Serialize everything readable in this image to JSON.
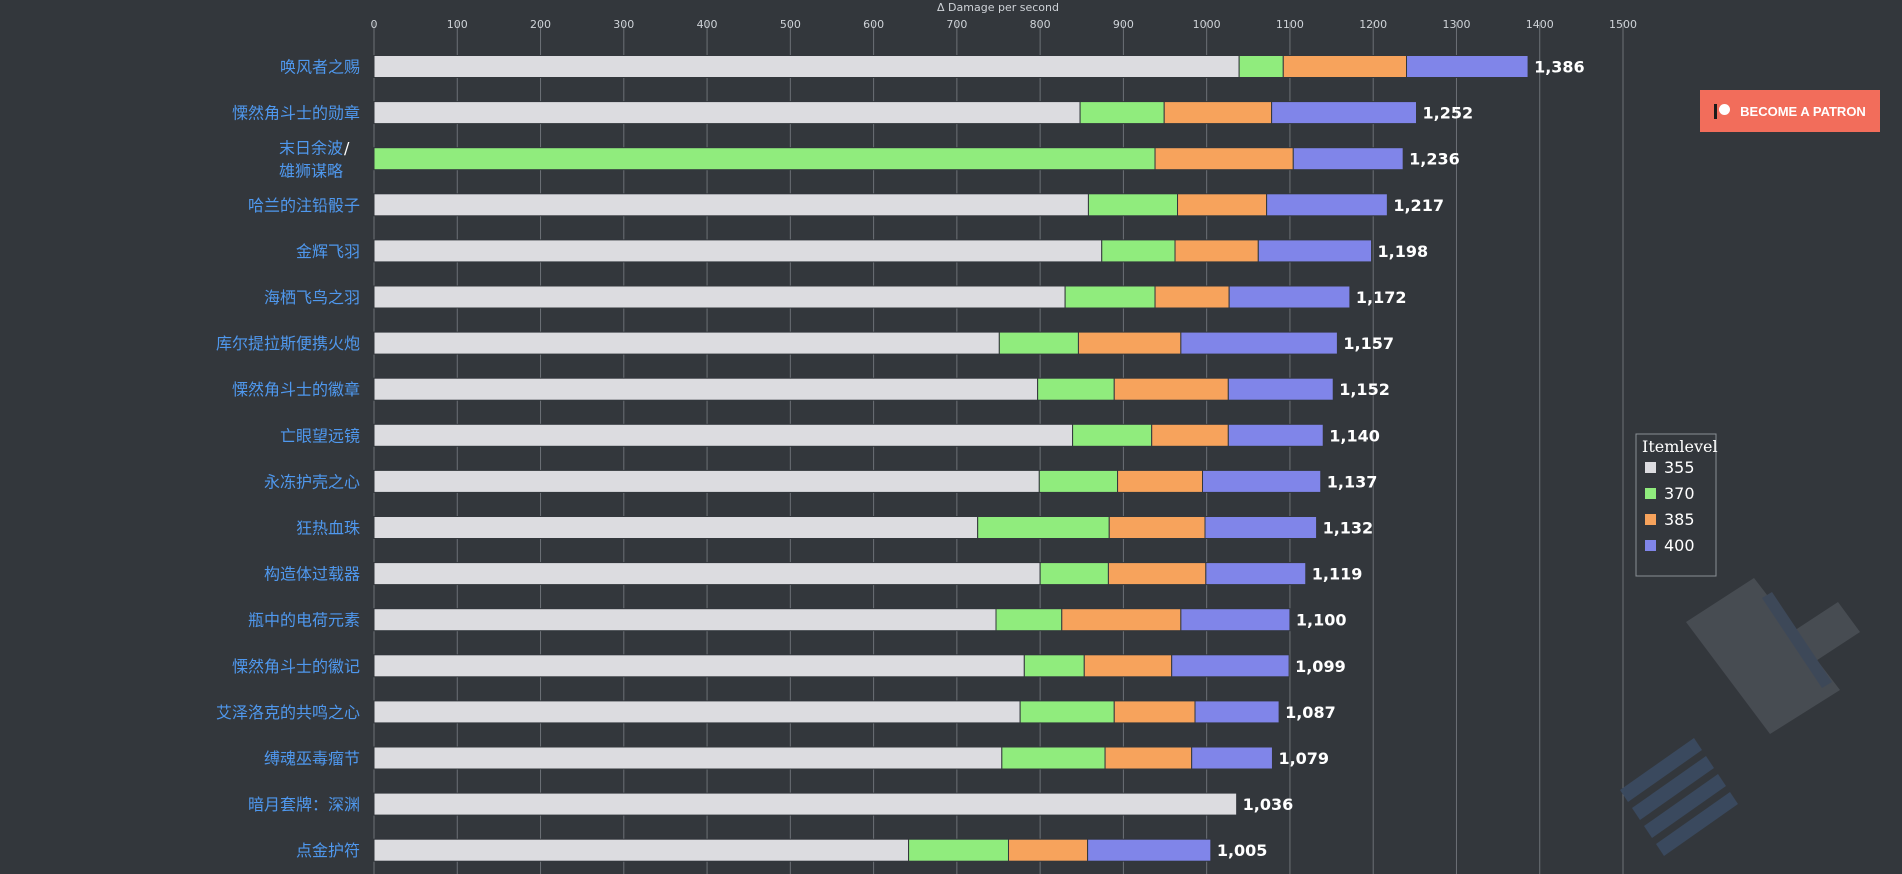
{
  "chart_data": {
    "type": "bar",
    "orientation": "horizontal",
    "stacked": true,
    "xlabel": "Δ Damage per second",
    "xlim": [
      0,
      1500
    ],
    "xticks": [
      0,
      100,
      200,
      300,
      400,
      500,
      600,
      700,
      800,
      900,
      1000,
      1100,
      1200,
      1300,
      1400,
      1500
    ],
    "grid": true,
    "legend_title": "Itemlevel",
    "legend_position": "right",
    "categories": [
      "唤风者之赐",
      "慄然角斗士的勋章",
      "末日余波 / 雄狮谋略",
      "哈兰的注铅骰子",
      "金辉飞羽",
      "海栖飞鸟之羽",
      "库尔提拉斯便携火炮",
      "慄然角斗士的徽章",
      "亡眼望远镜",
      "永冻护壳之心",
      "狂热血珠",
      "构造体过载器",
      "瓶中的电荷元素",
      "慄然角斗士的徽记",
      "艾泽洛克的共鸣之心",
      "缚魂巫毒瘤节",
      "暗月套牌：深渊",
      "点金护符"
    ],
    "category_lines": [
      [
        "唤风者之赐"
      ],
      [
        "慄然角斗士的勋章"
      ],
      [
        "末日余波",
        " /",
        "雄狮谋略"
      ],
      [
        "哈兰的注铅骰子"
      ],
      [
        "金辉飞羽"
      ],
      [
        "海栖飞鸟之羽"
      ],
      [
        "库尔提拉斯便携火炮"
      ],
      [
        "慄然角斗士的徽章"
      ],
      [
        "亡眼望远镜"
      ],
      [
        "永冻护壳之心"
      ],
      [
        "狂热血珠"
      ],
      [
        "构造体过载器"
      ],
      [
        "瓶中的电荷元素"
      ],
      [
        "慄然角斗士的徽记"
      ],
      [
        "艾泽洛克的共鸣之心"
      ],
      [
        "缚魂巫毒瘤节"
      ],
      [
        "暗月套牌：深渊"
      ],
      [
        "点金护符"
      ]
    ],
    "series": [
      {
        "name": "355",
        "color": "#dcdce0",
        "values": [
          1039,
          848,
          0,
          858,
          874,
          830,
          751,
          797,
          839,
          799,
          725,
          800,
          747,
          781,
          776,
          754,
          1036,
          642
        ]
      },
      {
        "name": "370",
        "color": "#90ec7d",
        "values": [
          53,
          101,
          938,
          107,
          88,
          108,
          95,
          92,
          95,
          94,
          158,
          82,
          79,
          72,
          113,
          124,
          0,
          120
        ]
      },
      {
        "name": "385",
        "color": "#f7a35c",
        "values": [
          148,
          129,
          166,
          107,
          100,
          89,
          123,
          137,
          92,
          102,
          115,
          117,
          143,
          105,
          97,
          104,
          0,
          95
        ]
      },
      {
        "name": "400",
        "color": "#8085e9",
        "values": [
          146,
          174,
          132,
          145,
          136,
          145,
          188,
          126,
          114,
          142,
          134,
          120,
          131,
          141,
          101,
          97,
          0,
          148
        ]
      }
    ],
    "totals": [
      "1,386",
      "1,252",
      "1,236",
      "1,217",
      "1,198",
      "1,172",
      "1,157",
      "1,152",
      "1,140",
      "1,137",
      "1,132",
      "1,119",
      "1,100",
      "1,099",
      "1,087",
      "1,079",
      "1,036",
      "1,005"
    ]
  },
  "patron_button": {
    "label": "BECOME A PATRON",
    "color": "#f26d5b"
  }
}
